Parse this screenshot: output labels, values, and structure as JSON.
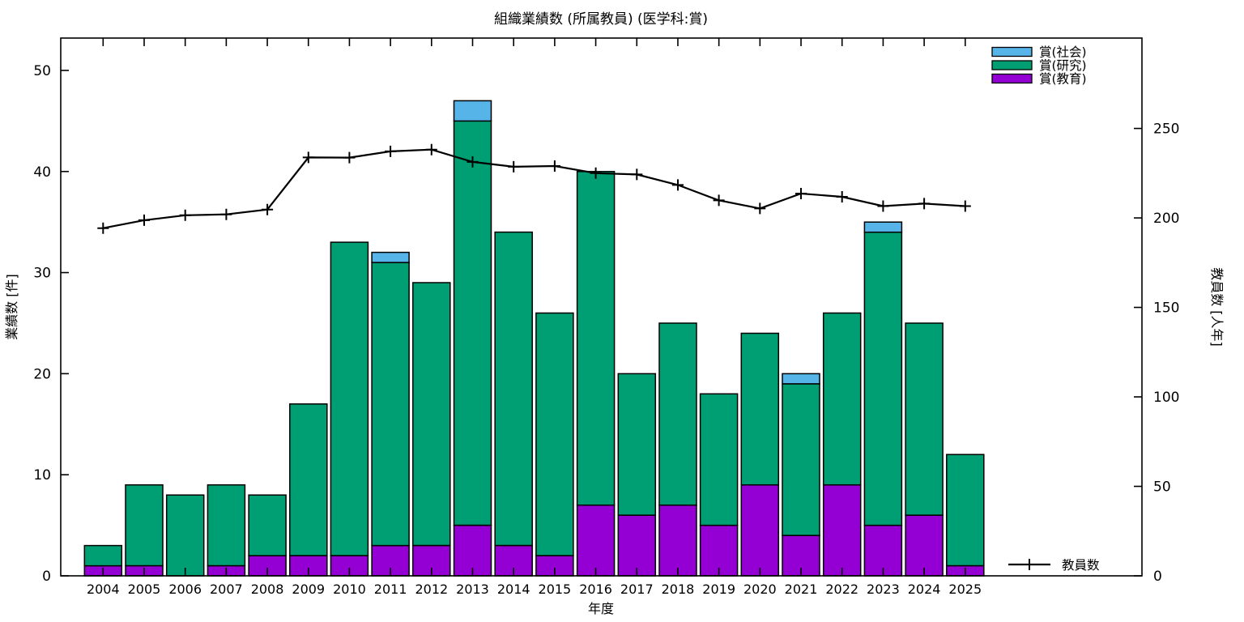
{
  "title": "組織業績数 (所属教員) (医学科:賞)",
  "colors": {
    "award_social": "#56B4E9",
    "award_research": "#009E73",
    "award_education": "#9400D3",
    "line": "#000000",
    "axis": "#000000",
    "background": "#ffffff"
  },
  "chart_data": {
    "type": "bar",
    "subtype": "stacked-bars-with-line-overlay-dual-axis",
    "title": "組織業績数 (所属教員) (医学科:賞)",
    "xlabel": "年度",
    "ylabel_left": "業績数 [件]",
    "ylabel_right": "教員数 [人年]",
    "categories": [
      "2004",
      "2005",
      "2006",
      "2007",
      "2008",
      "2009",
      "2010",
      "2011",
      "2012",
      "2013",
      "2014",
      "2015",
      "2016",
      "2017",
      "2018",
      "2019",
      "2020",
      "2021",
      "2022",
      "2023",
      "2024",
      "2025"
    ],
    "series": [
      {
        "name": "賞(教育)",
        "color": "#9400D3",
        "values": [
          1,
          1,
          0,
          1,
          2,
          2,
          2,
          3,
          3,
          5,
          3,
          2,
          7,
          6,
          7,
          5,
          9,
          4,
          9,
          5,
          6,
          1
        ]
      },
      {
        "name": "賞(研究)",
        "color": "#009E73",
        "values": [
          2,
          8,
          8,
          8,
          6,
          15,
          31,
          28,
          26,
          40,
          31,
          24,
          33,
          14,
          18,
          13,
          15,
          15,
          17,
          29,
          19,
          11
        ]
      },
      {
        "name": "賞(社会)",
        "color": "#56B4E9",
        "values": [
          0,
          0,
          0,
          0,
          0,
          0,
          0,
          1,
          0,
          2,
          0,
          0,
          0,
          0,
          0,
          0,
          0,
          1,
          0,
          1,
          0,
          0
        ]
      }
    ],
    "bar_totals": [
      3,
      9,
      8,
      9,
      8,
      17,
      33,
      32,
      29,
      47,
      34,
      26,
      40,
      20,
      25,
      18,
      24,
      20,
      26,
      35,
      25,
      12
    ],
    "line_series": {
      "name": "教員数",
      "color": "#000000",
      "axis": "right",
      "marker": "plus",
      "values": [
        194.3,
        198.7,
        201.5,
        202.0,
        204.7,
        233.8,
        233.7,
        237.2,
        238.2,
        231.3,
        228.6,
        229.0,
        225.0,
        224.3,
        218.4,
        209.8,
        205.3,
        213.6,
        211.8,
        206.6,
        208.0,
        206.6
      ]
    },
    "ylim_left": [
      0,
      53.2
    ],
    "yticks_left": [
      0,
      10,
      20,
      30,
      40,
      50
    ],
    "ylim_right": [
      0,
      300.5
    ],
    "yticks_right": [
      0,
      50,
      100,
      150,
      200,
      250
    ],
    "grid": false,
    "legend_top_right": [
      "賞(社会)",
      "賞(研究)",
      "賞(教育)"
    ],
    "legend_bottom_right": "教員数"
  }
}
